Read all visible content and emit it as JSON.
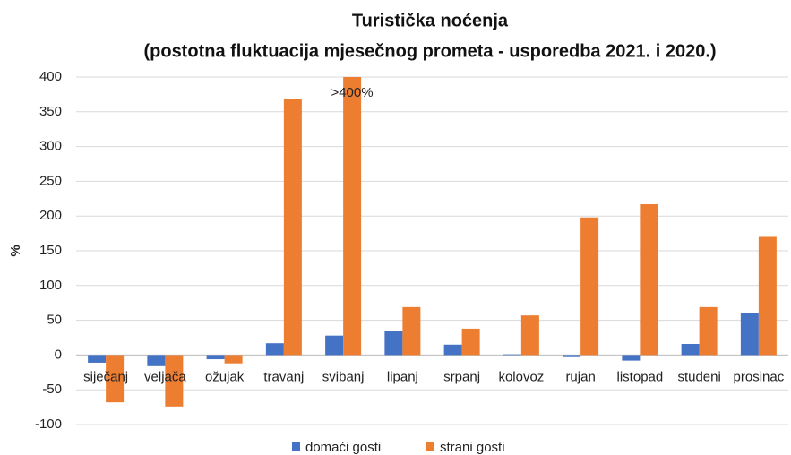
{
  "chart_data": {
    "type": "bar",
    "title": "Turistička noćenja",
    "subtitle": "(postotna fluktuacija  mjesečnog prometa - usporedba 2021. i 2020.)",
    "y_label": "%",
    "annotation": ">400%",
    "categories": [
      "siječanj",
      "veljača",
      "ožujak",
      "travanj",
      "svibanj",
      "lipanj",
      "srpanj",
      "kolovoz",
      "rujan",
      "listopad",
      "studeni",
      "prosinac"
    ],
    "series": [
      {
        "name": "domaći gosti",
        "color": "#4472c4",
        "values": [
          -11,
          -16,
          -6,
          17,
          28,
          35,
          15,
          1,
          -3,
          -8,
          16,
          60
        ]
      },
      {
        "name": "strani gosti",
        "color": "#ed7d31",
        "values": [
          -68,
          -74,
          -12,
          369,
          400,
          69,
          38,
          57,
          198,
          217,
          69,
          170
        ]
      }
    ],
    "ylim": [
      -100,
      400
    ],
    "yticks": [
      -100,
      -50,
      0,
      50,
      100,
      150,
      200,
      250,
      300,
      350,
      400
    ],
    "grid": true,
    "legend": "bottom"
  }
}
